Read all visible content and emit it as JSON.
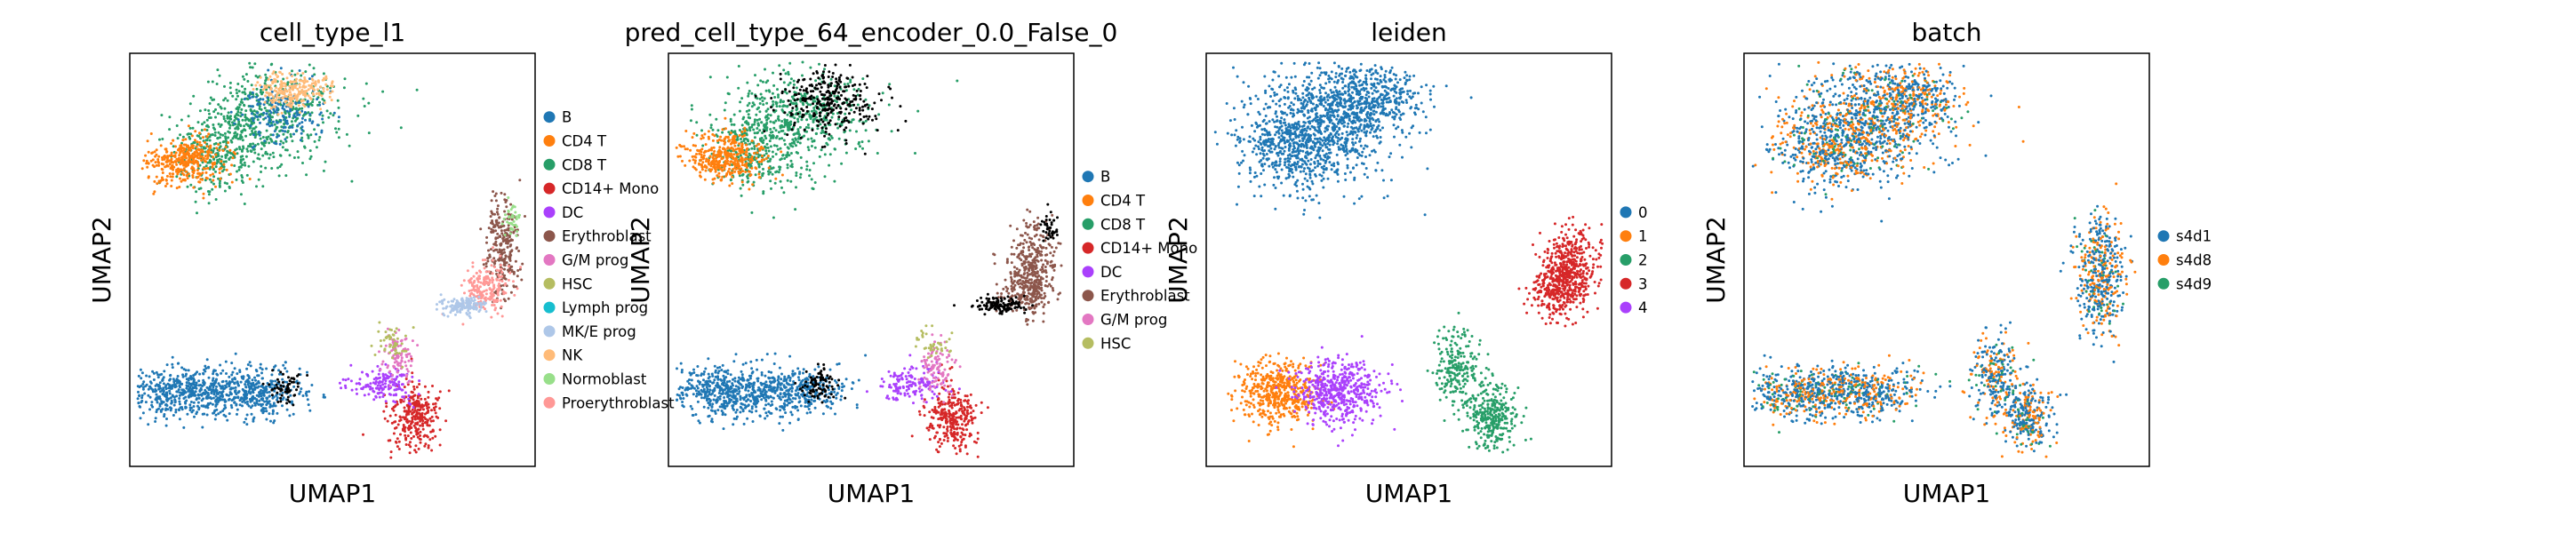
{
  "figure": {
    "panels": [
      {
        "title": "cell_type_l1",
        "xlabel": "UMAP1",
        "ylabel": "UMAP2",
        "legend": [
          "B",
          "CD4 T",
          "CD8 T",
          "CD14+ Mono",
          "DC",
          "Erythroblast",
          "G/M prog",
          "HSC",
          "Lymph prog",
          "MK/E prog",
          "NK",
          "Normoblast",
          "Proerythroblast"
        ],
        "colors": [
          "#1f77b4",
          "#ff7f0e",
          "#279e68",
          "#d62728",
          "#aa40fc",
          "#8c564b",
          "#e377c2",
          "#b5bd61",
          "#17becf",
          "#aec7e8",
          "#ffbb78",
          "#98df8a",
          "#ff9896"
        ]
      },
      {
        "title": "pred_cell_type_64_encoder_0.0_False_0",
        "xlabel": "UMAP1",
        "ylabel": "UMAP2",
        "legend": [
          "B",
          "CD4 T",
          "CD8 T",
          "CD14+ Mono",
          "DC",
          "Erythroblast",
          "G/M prog",
          "HSC"
        ],
        "colors": [
          "#1f77b4",
          "#ff7f0e",
          "#279e68",
          "#d62728",
          "#aa40fc",
          "#8c564b",
          "#e377c2",
          "#b5bd61"
        ]
      },
      {
        "title": "leiden",
        "xlabel": "UMAP1",
        "ylabel": "UMAP2",
        "legend": [
          "0",
          "1",
          "2",
          "3",
          "4"
        ],
        "colors": [
          "#1f77b4",
          "#ff7f0e",
          "#279e68",
          "#d62728",
          "#aa40fc"
        ]
      },
      {
        "title": "batch",
        "xlabel": "UMAP1",
        "ylabel": "UMAP2",
        "legend": [
          "s4d1",
          "s4d8",
          "s4d9"
        ],
        "colors": [
          "#1f77b4",
          "#ff7f0e",
          "#279e68"
        ]
      }
    ]
  },
  "chart_data": [
    {
      "type": "scatter",
      "title": "cell_type_l1",
      "xlabel": "UMAP1",
      "ylabel": "UMAP2",
      "ticks": "none",
      "legend_placement": "right",
      "series": [
        {
          "name": "B",
          "color": "#1f77b4",
          "cells": [
            [
              0.29,
              0.8
            ],
            [
              0.5,
              0.8
            ]
          ]
        },
        {
          "name": "CD4 T",
          "color": "#ff7f0e",
          "cells": [
            [
              0.14,
              0.28
            ]
          ]
        },
        {
          "name": "CD8 T",
          "color": "#279e68",
          "cells": [
            [
              0.28,
              0.12
            ]
          ]
        },
        {
          "name": "CD14+ Mono",
          "color": "#d62728",
          "cells": [
            [
              0.7,
              0.88
            ]
          ]
        },
        {
          "name": "DC",
          "color": "#aa40fc",
          "cells": [
            [
              0.62,
              0.81
            ]
          ]
        },
        {
          "name": "Erythroblast",
          "color": "#8c564b",
          "cells": [
            [
              0.92,
              0.5
            ]
          ]
        },
        {
          "name": "G/M prog",
          "color": "#e377c2",
          "cells": [
            [
              0.66,
              0.76
            ]
          ]
        },
        {
          "name": "HSC",
          "color": "#b5bd61",
          "cells": [
            [
              0.65,
              0.7
            ]
          ]
        },
        {
          "name": "Lymph prog",
          "color": "#17becf",
          "cells": [
            [
              0.37,
              0.81
            ]
          ]
        },
        {
          "name": "MK/E prog",
          "color": "#aec7e8",
          "cells": [
            [
              0.82,
              0.6
            ]
          ]
        },
        {
          "name": "NK",
          "color": "#ffbb78",
          "cells": [
            [
              0.38,
              0.09
            ]
          ]
        },
        {
          "name": "Normoblast",
          "color": "#98df8a",
          "cells": [
            [
              0.95,
              0.42
            ]
          ]
        },
        {
          "name": "Proerythroblast",
          "color": "#ff9896",
          "cells": [
            [
              0.88,
              0.58
            ]
          ]
        }
      ]
    },
    {
      "type": "scatter",
      "title": "pred_cell_type_64_encoder_0.0_False_0",
      "xlabel": "UMAP1",
      "ylabel": "UMAP2",
      "ticks": "none",
      "legend_placement": "right",
      "series": [
        {
          "name": "B",
          "color": "#1f77b4",
          "cells": [
            [
              0.29,
              0.8
            ],
            [
              0.5,
              0.8
            ]
          ]
        },
        {
          "name": "CD4 T",
          "color": "#ff7f0e",
          "cells": [
            [
              0.14,
              0.27
            ]
          ]
        },
        {
          "name": "CD8 T",
          "color": "#279e68",
          "cells": [
            [
              0.25,
              0.15
            ]
          ]
        },
        {
          "name": "CD14+ Mono",
          "color": "#d62728",
          "cells": [
            [
              0.7,
              0.88
            ]
          ]
        },
        {
          "name": "DC",
          "color": "#aa40fc",
          "cells": [
            [
              0.6,
              0.81
            ]
          ]
        },
        {
          "name": "Erythroblast",
          "color": "#8c564b",
          "cells": [
            [
              0.9,
              0.52
            ]
          ]
        },
        {
          "name": "G/M prog",
          "color": "#e377c2",
          "cells": [
            [
              0.66,
              0.77
            ]
          ]
        },
        {
          "name": "HSC",
          "color": "#b5bd61",
          "cells": [
            [
              0.65,
              0.7
            ]
          ]
        }
      ]
    },
    {
      "type": "scatter",
      "title": "leiden",
      "xlabel": "UMAP1",
      "ylabel": "UMAP2",
      "ticks": "none",
      "legend_placement": "right",
      "series": [
        {
          "name": "0",
          "color": "#1f77b4",
          "cells": [
            [
              0.3,
              0.2
            ]
          ]
        },
        {
          "name": "1",
          "color": "#ff7f0e",
          "cells": [
            [
              0.18,
              0.8
            ]
          ]
        },
        {
          "name": "2",
          "color": "#279e68",
          "cells": [
            [
              0.67,
              0.82
            ]
          ]
        },
        {
          "name": "3",
          "color": "#d62728",
          "cells": [
            [
              0.9,
              0.52
            ]
          ]
        },
        {
          "name": "4",
          "color": "#aa40fc",
          "cells": [
            [
              0.33,
              0.82
            ]
          ]
        }
      ]
    },
    {
      "type": "scatter",
      "title": "batch",
      "xlabel": "UMAP1",
      "ylabel": "UMAP2",
      "ticks": "none",
      "legend_placement": "right",
      "series": [
        {
          "name": "s4d1",
          "color": "#1f77b4",
          "share": 0.55
        },
        {
          "name": "s4d8",
          "color": "#ff7f0e",
          "share": 0.35
        },
        {
          "name": "s4d9",
          "color": "#279e68",
          "share": 0.1
        }
      ]
    }
  ]
}
